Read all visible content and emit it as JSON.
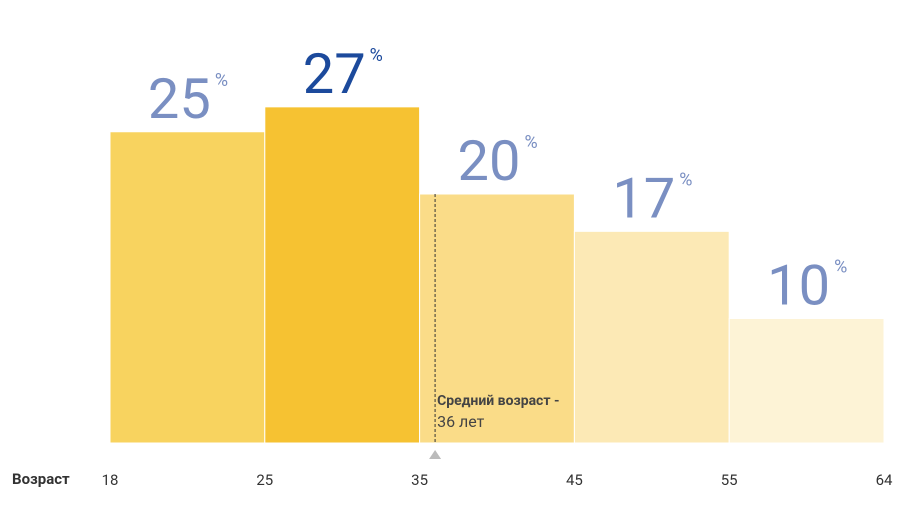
{
  "chart_data": {
    "type": "histogram",
    "bins": [
      18,
      25,
      35,
      45,
      55,
      64
    ],
    "values": [
      25,
      27,
      20,
      17,
      10
    ],
    "unit": "%",
    "colors": [
      "#f8d35f",
      "#f6c232",
      "#fadc88",
      "#fce9b5",
      "#fdf3d6"
    ],
    "label_colors": [
      "#7a8fc2",
      "#1c4a9c",
      "#7a8fc2",
      "#7a8fc2",
      "#7a8fc2"
    ],
    "ylim": [
      0,
      30
    ],
    "x_label": "Возраст",
    "mean": 36,
    "annotation": [
      "Средний возраст -",
      "36 лет"
    ]
  }
}
